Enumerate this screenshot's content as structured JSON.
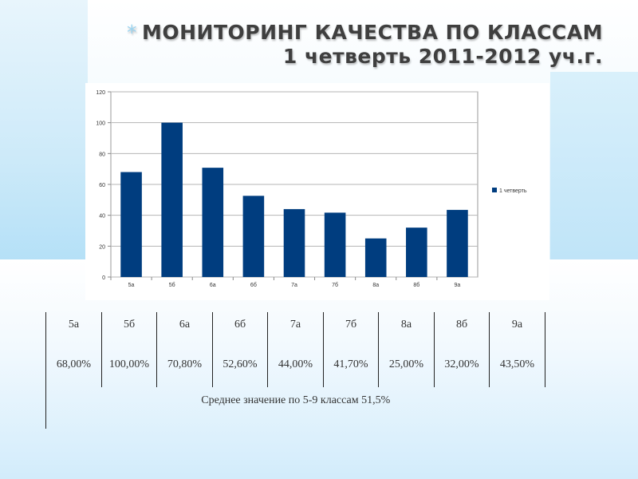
{
  "title": {
    "line1": "МОНИТОРИНГ КАЧЕСТВА ПО КЛАССАМ",
    "line2": "1 четверть 2011-2012 уч.г.",
    "bullet": "*"
  },
  "chart_data": {
    "type": "bar",
    "categories": [
      "5а",
      "5б",
      "6а",
      "6б",
      "7а",
      "7б",
      "8а",
      "8б",
      "9а"
    ],
    "series": [
      {
        "name": "1 четверть",
        "values": [
          68,
          100,
          70.8,
          52.6,
          44,
          41.7,
          25,
          32,
          43.5
        ],
        "color": "#003d7f"
      }
    ],
    "yticks": [
      0,
      20,
      40,
      60,
      80,
      100,
      120
    ],
    "ylim": [
      0,
      120
    ],
    "grid": true,
    "legend_position": "right"
  },
  "table": {
    "headers": [
      "5а",
      "5б",
      "6а",
      "6б",
      "7а",
      "7б",
      "8а",
      "8б",
      "9а"
    ],
    "values": [
      "68,00%",
      "100,00%",
      "70,80%",
      "52,60%",
      "44,00%",
      "41,70%",
      "25,00%",
      "32,00%",
      "43,50%"
    ],
    "average": "Среднее значение по 5-9 классам 51,5%"
  }
}
